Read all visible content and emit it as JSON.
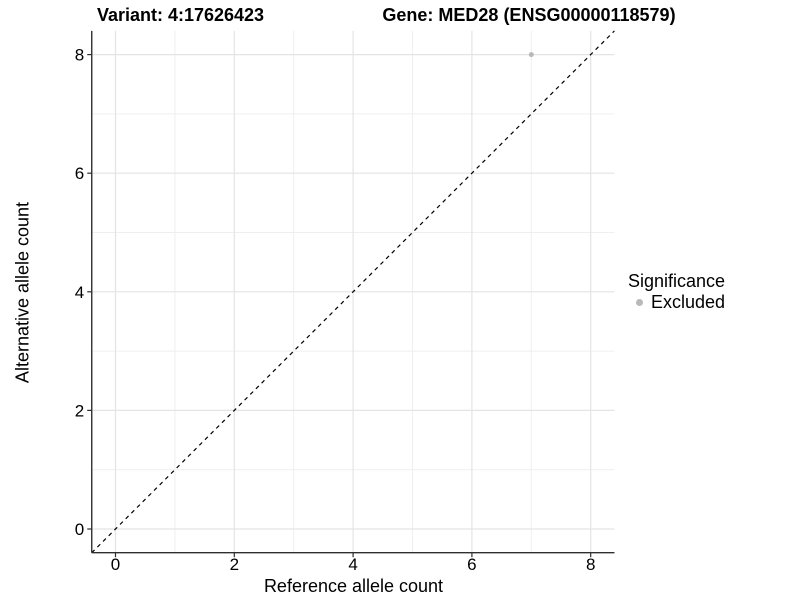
{
  "chart_data": {
    "type": "scatter",
    "titles": {
      "variant": "Variant: 4:17626423",
      "gene": "Gene: MED28 (ENSG00000118579)"
    },
    "xlabel": "Reference allele count",
    "ylabel": "Alternative allele count",
    "xlim": [
      -0.4,
      8.4
    ],
    "ylim": [
      -0.4,
      8.4
    ],
    "x_ticks": [
      0,
      2,
      4,
      6,
      8
    ],
    "y_ticks": [
      0,
      2,
      4,
      6,
      8
    ],
    "grid": {
      "enabled": true,
      "major_color": "#e4e4e4",
      "minor_color": "#efefef"
    },
    "series": [
      {
        "name": "Excluded",
        "color": "#b9b9b9",
        "points": [
          [
            7,
            8
          ]
        ]
      }
    ],
    "reference_line": {
      "type": "identity",
      "slope": 1,
      "intercept": 0,
      "style": "dashed",
      "color": "#000000"
    },
    "legend": {
      "title": "Significance",
      "position": "right",
      "entries": [
        {
          "label": "Excluded",
          "color": "#b9b9b9"
        }
      ]
    },
    "axis_color": "#2f2f2f"
  }
}
